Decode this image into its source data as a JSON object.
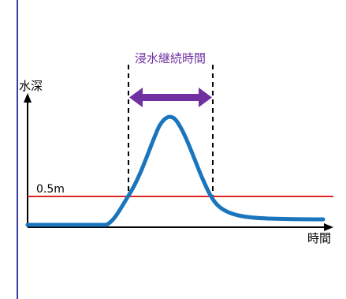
{
  "duration_label": "浸水継続時間",
  "y_axis_label": "水深",
  "x_axis_label": "時間",
  "threshold_label": "0.5m",
  "colors": {
    "frame": "#3a3aa8",
    "curve": "#1b75bc",
    "threshold": "#e0242a",
    "duration_text": "#7030a0",
    "duration_arrow": "#7030a0",
    "axis": "#000000",
    "guide": "#000000"
  }
}
